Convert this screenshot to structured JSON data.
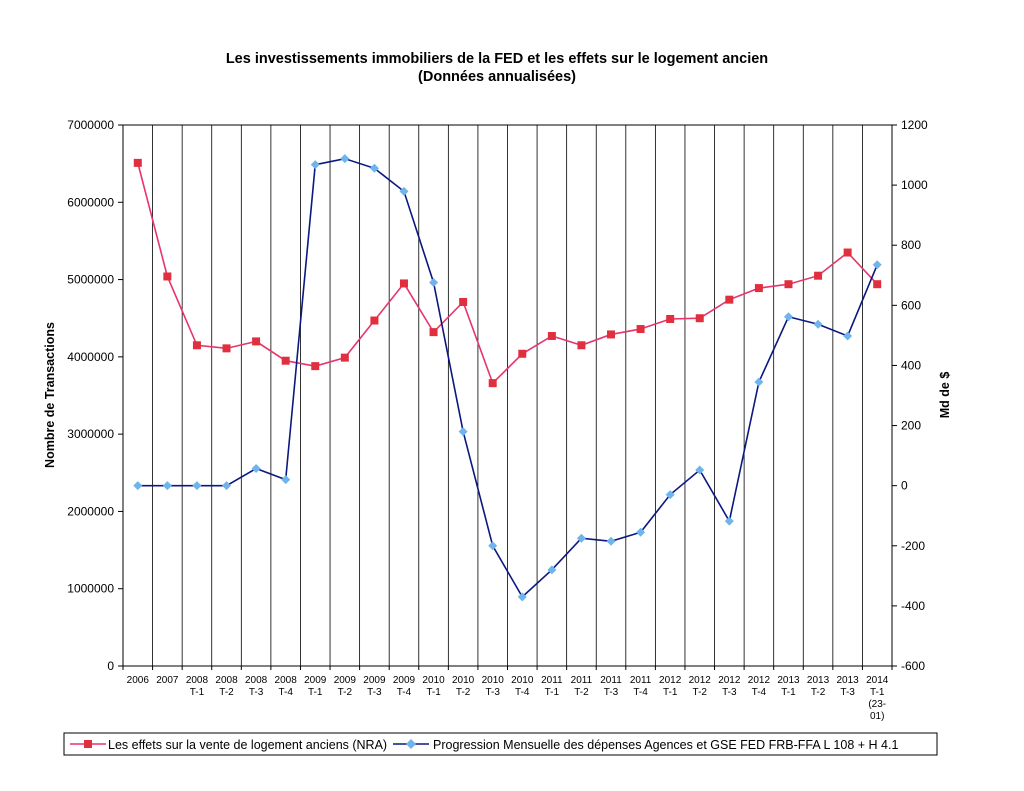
{
  "chart_data": {
    "type": "line",
    "title_line1": "Les investissements immobiliers de la FED et les effets sur le logement ancien",
    "title_line2": "(Données annualisées)",
    "ylabel_left": "Nombre de Transactions",
    "ylabel_right": "Md de $",
    "ylim_left": [
      0,
      7000000
    ],
    "ylim_right": [
      -600,
      1200
    ],
    "yticks_left": [
      "0",
      "1000000",
      "2000000",
      "3000000",
      "4000000",
      "5000000",
      "6000000",
      "7000000"
    ],
    "yticks_right": [
      "-600",
      "-400",
      "-200",
      "0",
      "200",
      "400",
      "600",
      "800",
      "1000",
      "1200"
    ],
    "grid": "vertical",
    "legend_position": "bottom",
    "categories": [
      [
        "2006"
      ],
      [
        "2007"
      ],
      [
        "2008",
        "T-1"
      ],
      [
        "2008",
        "T-2"
      ],
      [
        "2008",
        "T-3"
      ],
      [
        "2008",
        "T-4"
      ],
      [
        "2009",
        "T-1"
      ],
      [
        "2009",
        "T-2"
      ],
      [
        "2009",
        "T-3"
      ],
      [
        "2009",
        "T-4"
      ],
      [
        "2010",
        "T-1"
      ],
      [
        "2010",
        "T-2"
      ],
      [
        "2010",
        "T-3"
      ],
      [
        "2010",
        "T-4"
      ],
      [
        "2011",
        "T-1"
      ],
      [
        "2011",
        "T-2"
      ],
      [
        "2011",
        "T-3"
      ],
      [
        "2011",
        "T-4"
      ],
      [
        "2012",
        "T-1"
      ],
      [
        "2012",
        "T-2"
      ],
      [
        "2012",
        "T-3"
      ],
      [
        "2012",
        "T-4"
      ],
      [
        "2013",
        "T-1"
      ],
      [
        "2013",
        "T-2"
      ],
      [
        "2013",
        "T-3"
      ],
      [
        "2014",
        "T-1",
        "(23-",
        "01)"
      ]
    ],
    "series": [
      {
        "name": "Les effets sur la vente de logement anciens (NRA)",
        "axis": "left",
        "color": "#e6356b",
        "marker": "square",
        "marker_color": "#e0303f",
        "values": [
          6510000,
          5040000,
          4150000,
          4110000,
          4200000,
          3950000,
          3880000,
          3990000,
          4470000,
          4950000,
          4320000,
          4710000,
          3660000,
          4040000,
          4270000,
          4150000,
          4290000,
          4360000,
          4490000,
          4500000,
          4740000,
          4890000,
          4940000,
          5050000,
          5350000,
          4940000
        ]
      },
      {
        "name": "Progression Mensuelle des dépenses Agences et GSE FED FRB-FFA L 108 + H 4.1",
        "axis": "right",
        "color": "#0a1880",
        "marker": "diamond",
        "marker_color": "#6fb4ea",
        "values": [
          0,
          0,
          0,
          0,
          57,
          20,
          1068,
          1088,
          1056,
          979,
          676,
          180,
          -200,
          -370,
          -280,
          -175,
          -185,
          -155,
          -30,
          52,
          -118,
          345,
          562,
          537,
          498,
          735
        ]
      }
    ]
  }
}
